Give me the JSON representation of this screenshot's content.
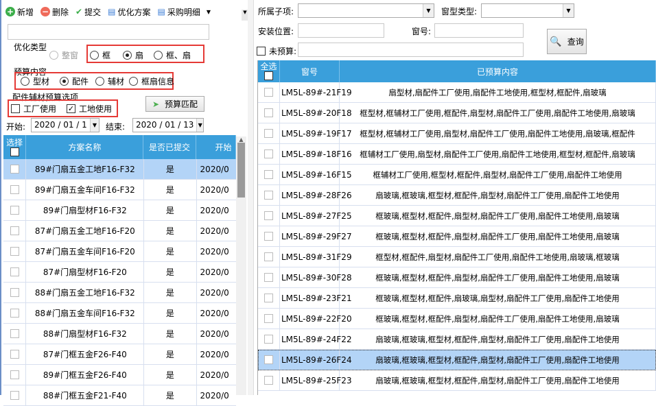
{
  "toolbar": {
    "add": "新增",
    "delete": "删除",
    "submit": "提交",
    "optimize": "优化方案",
    "purchase": "采购明细"
  },
  "opt_type": {
    "title": "优化类型",
    "options": [
      "整窗",
      "框",
      "扇",
      "框、扇"
    ],
    "selected": "扇"
  },
  "budget": {
    "title": "预算内容",
    "options": [
      "型材",
      "配件",
      "辅材",
      "框扇信息"
    ],
    "selected": "配件"
  },
  "accessory": {
    "title": "配件辅材预算选项",
    "factory": "工厂使用",
    "factory_checked": false,
    "site": "工地使用",
    "site_checked": true,
    "match_button": "预算匹配"
  },
  "dates": {
    "start_label": "开始:",
    "start": "2020 / 01 / 1",
    "end_label": "结束:",
    "end": "2020 / 01 / 13"
  },
  "left_table": {
    "headers": [
      "选择",
      "方案名称",
      "是否已提交",
      "开始"
    ],
    "rows": [
      [
        "89#门扇五金工地F16-F32",
        "是",
        "2020/0"
      ],
      [
        "89#门扇五金车间F16-F32",
        "是",
        "2020/0"
      ],
      [
        "89#门扇型材F16-F32",
        "是",
        "2020/0"
      ],
      [
        "87#门扇五金工地F16-F20",
        "是",
        "2020/0"
      ],
      [
        "87#门扇五金车间F16-F20",
        "是",
        "2020/0"
      ],
      [
        "87#门扇型材F16-F20",
        "是",
        "2020/0"
      ],
      [
        "88#门扇五金工地F16-F32",
        "是",
        "2020/0"
      ],
      [
        "88#门扇五金车间F16-F32",
        "是",
        "2020/0"
      ],
      [
        "88#门扇型材F16-F32",
        "是",
        "2020/0"
      ],
      [
        "87#门框五金F26-F40",
        "是",
        "2020/0"
      ],
      [
        "89#门框五金F26-F40",
        "是",
        "2020/0"
      ],
      [
        "88#门框五金F21-F40",
        "是",
        "2020/0"
      ]
    ],
    "selected_index": 0
  },
  "filters": {
    "subitem_label": "所属子项:",
    "window_type_label": "窗型类型:",
    "location_label": "安装位置:",
    "window_no_label": "窗号:",
    "unbudgeted_label": "未预算:",
    "query_button": "查询"
  },
  "right_table": {
    "headers": [
      "全选",
      "窗号",
      "已预算内容"
    ],
    "rows": [
      [
        "LM5L-89#-21F19",
        "扇型材,扇配件工厂使用,扇配件工地使用,框型材,框配件,扇玻璃"
      ],
      [
        "LM5L-89#-20F18",
        "框型材,框辅材工厂使用,框配件,扇型材,扇配件工厂使用,扇配件工地使用,扇玻璃"
      ],
      [
        "LM5L-89#-19F17",
        "框型材,框辅材工厂使用,扇型材,扇配件工厂使用,扇配件工地使用,扇玻璃,框配件"
      ],
      [
        "LM5L-89#-18F16",
        "框辅材工厂使用,扇型材,扇配件工厂使用,扇配件工地使用,框型材,框配件,扇玻璃"
      ],
      [
        "LM5L-89#-16F15",
        "框辅材工厂使用,框型材,框配件,扇型材,扇配件工厂使用,扇配件工地使用"
      ],
      [
        "LM5L-89#-28F26",
        "扇玻璃,框玻璃,框型材,框配件,扇型材,扇配件工厂使用,扇配件工地使用"
      ],
      [
        "LM5L-89#-27F25",
        "框玻璃,框型材,框配件,扇型材,扇配件工厂使用,扇配件工地使用,扇玻璃"
      ],
      [
        "LM5L-89#-29F27",
        "框玻璃,框型材,框配件,扇型材,扇配件工厂使用,扇配件工地使用,扇玻璃"
      ],
      [
        "LM5L-89#-31F29",
        "框型材,框配件,扇型材,扇配件工厂使用,扇配件工地使用,扇玻璃,框玻璃"
      ],
      [
        "LM5L-89#-30F28",
        "框玻璃,框型材,框配件,扇型材,扇配件工厂使用,扇配件工地使用,扇玻璃"
      ],
      [
        "LM5L-89#-23F21",
        "框玻璃,框型材,框配件,扇玻璃,扇型材,扇配件工厂使用,扇配件工地使用"
      ],
      [
        "LM5L-89#-22F20",
        "框玻璃,框型材,框配件,扇型材,扇配件工厂使用,扇配件工地使用,扇玻璃"
      ],
      [
        "LM5L-89#-24F22",
        "扇玻璃,框玻璃,框型材,框配件,扇型材,扇配件工厂使用,扇配件工地使用"
      ],
      [
        "LM5L-89#-26F24",
        "扇玻璃,框玻璃,框型材,框配件,扇型材,扇配件工厂使用,扇配件工地使用"
      ],
      [
        "LM5L-89#-25F23",
        "扇玻璃,框玻璃,框型材,框配件,扇型材,扇配件工厂使用,扇配件工地使用"
      ]
    ],
    "selected_index": 13
  },
  "colors": {
    "header": "#3a9fdb",
    "selected_row": "#b3d4f7",
    "highlight_box": "#e53935"
  }
}
